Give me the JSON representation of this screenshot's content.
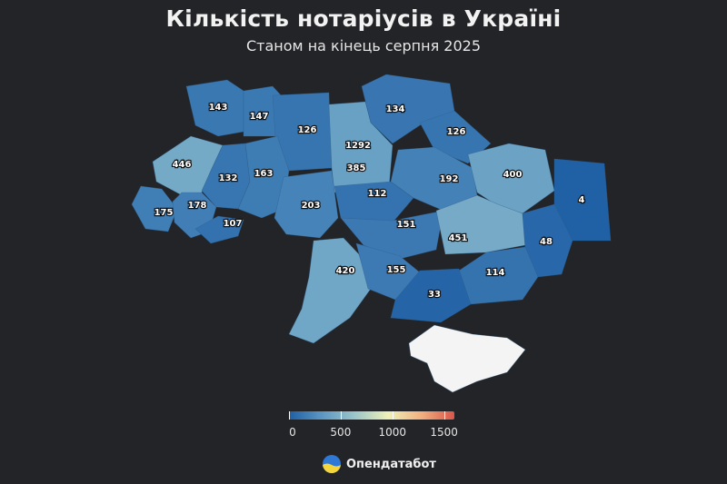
{
  "title": "Кількість нотаріусів в Україні",
  "subtitle": "Станом на кінець серпня 2025",
  "brand": "Опендатабот",
  "scale": {
    "ticks": [
      {
        "value": 0,
        "label": "0"
      },
      {
        "value": 500,
        "label": "500"
      },
      {
        "value": 1000,
        "label": "1000"
      },
      {
        "value": 1500,
        "label": "1500"
      }
    ],
    "min": 0,
    "max": 1600,
    "colors": [
      "#1f5fa4",
      "#5c97c4",
      "#9cc6c9",
      "#eef0b8",
      "#f1b17f",
      "#d8564a"
    ]
  },
  "regions": [
    {
      "name": "volyn",
      "value": 143
    },
    {
      "name": "rivne",
      "value": 147
    },
    {
      "name": "zhytomyr",
      "value": 126
    },
    {
      "name": "kyiv-city",
      "value": 1292
    },
    {
      "name": "kyiv-oblast",
      "value": 385
    },
    {
      "name": "chernihiv",
      "value": 134
    },
    {
      "name": "sumy",
      "value": 126
    },
    {
      "name": "lviv",
      "value": 446
    },
    {
      "name": "ternopil",
      "value": 132
    },
    {
      "name": "khmelnytskyi",
      "value": 163
    },
    {
      "name": "zakarpattia",
      "value": 175
    },
    {
      "name": "ivano-frankivsk",
      "value": 178
    },
    {
      "name": "chernivtsi",
      "value": 107
    },
    {
      "name": "vinnytsia",
      "value": 203
    },
    {
      "name": "cherkasy",
      "value": 112
    },
    {
      "name": "poltava",
      "value": 192
    },
    {
      "name": "kharkiv",
      "value": 400
    },
    {
      "name": "luhansk",
      "value": 4
    },
    {
      "name": "kirovohrad",
      "value": 151
    },
    {
      "name": "dnipropetrovsk",
      "value": 451
    },
    {
      "name": "donetsk",
      "value": 48
    },
    {
      "name": "odesa",
      "value": 420
    },
    {
      "name": "mykolaiv",
      "value": 155
    },
    {
      "name": "zaporizhzhia",
      "value": 114
    },
    {
      "name": "kherson",
      "value": 33
    },
    {
      "name": "crimea",
      "value": null
    }
  ]
}
